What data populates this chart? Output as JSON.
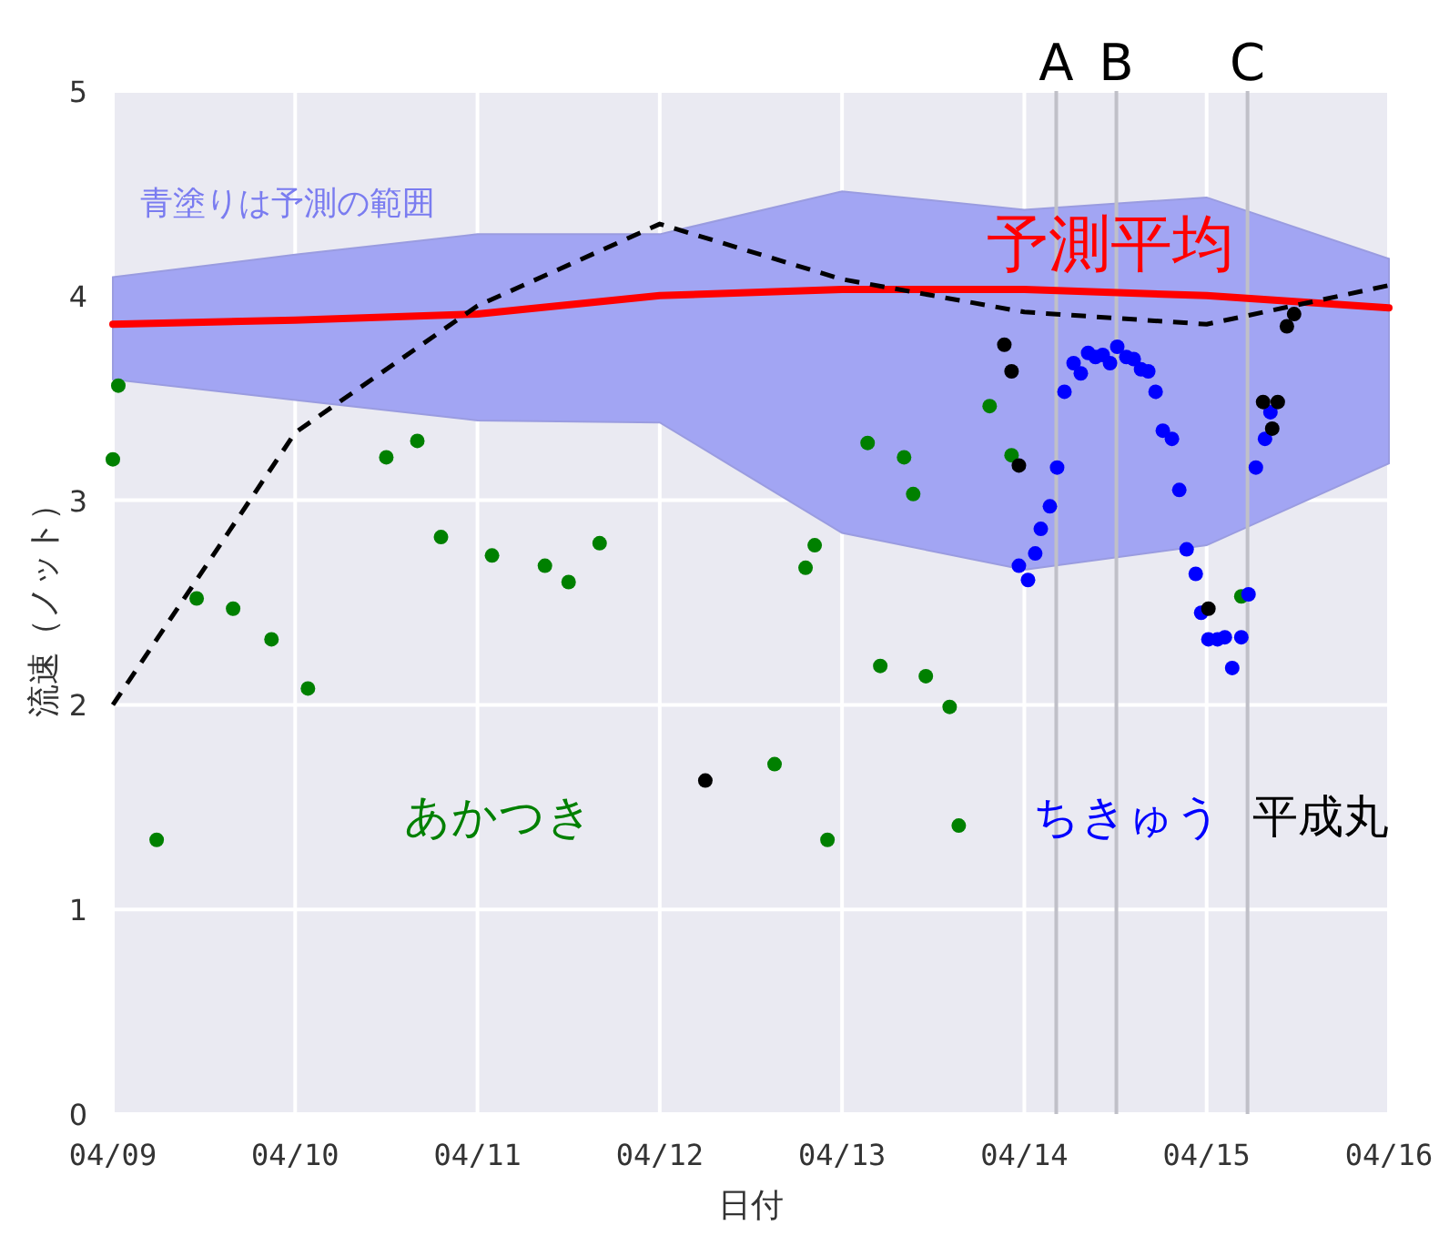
{
  "chart_data": {
    "type": "scatter",
    "xlabel": "日付",
    "ylabel": "流速（ノット）",
    "xlim": [
      "--04-09",
      "--04-16"
    ],
    "ylim": [
      0,
      5
    ],
    "xticks": [
      {
        "value": "--04-09",
        "label": "04/09"
      },
      {
        "value": "--04-10",
        "label": "04/10"
      },
      {
        "value": "--04-11",
        "label": "04/11"
      },
      {
        "value": "--04-12",
        "label": "04/12"
      },
      {
        "value": "--04-13",
        "label": "04/13"
      },
      {
        "value": "--04-14",
        "label": "04/14"
      },
      {
        "value": "--04-15",
        "label": "04/15"
      },
      {
        "value": "--04-16",
        "label": "04/16"
      }
    ],
    "yticks": [
      0,
      1,
      2,
      3,
      4,
      5
    ],
    "grid": true,
    "legend": false,
    "annotations": [
      "青塗りは予測の範囲"
    ],
    "ref_lines": [
      {
        "axis": "x",
        "value": "--04-14T04:12",
        "label": "A",
        "color": "#c0c0c8"
      },
      {
        "axis": "x",
        "value": "--04-14T12:07",
        "label": "B",
        "color": "#c0c0c8"
      },
      {
        "axis": "x",
        "value": "--04-15T05:23",
        "label": "C",
        "color": "#c0c0c8"
      }
    ],
    "series": [
      {
        "name": "予測平均",
        "type": "line",
        "color": "#ff0000",
        "marker": "none",
        "x": [
          "--04-09",
          "--04-10",
          "--04-11",
          "--04-12",
          "--04-13",
          "--04-14",
          "--04-15",
          "--04-16"
        ],
        "values": [
          3.86,
          3.88,
          3.91,
          4.0,
          4.03,
          4.03,
          4.0,
          3.94
        ],
        "lower": [
          3.59,
          3.49,
          3.39,
          3.38,
          2.84,
          2.66,
          2.78,
          3.18
        ],
        "upper": [
          4.09,
          4.2,
          4.3,
          4.3,
          4.51,
          4.42,
          4.48,
          4.18
        ]
      },
      {
        "type": "line",
        "color": "#000000",
        "line_style": "dashed",
        "marker": "none",
        "x": [
          "--04-09",
          "--04-10",
          "--04-11",
          "--04-12",
          "--04-13",
          "--04-14",
          "--04-15",
          "--04-16"
        ],
        "values": [
          2.0,
          3.33,
          3.95,
          4.35,
          4.08,
          3.92,
          3.86,
          4.05
        ]
      },
      {
        "name": "あかつき",
        "color": "#008000",
        "marker": "circle",
        "x": [
          "--04-09T00:43",
          "--04-09T00:00",
          "--04-09T05:46",
          "--04-09T11:02",
          "--04-09T15:50",
          "--04-09T20:53",
          "--04-10T01:41",
          "--04-10T12:00",
          "--04-10T16:05",
          "--04-10T19:12",
          "--04-11T01:55",
          "--04-11T08:53",
          "--04-11T12:00",
          "--04-11T16:05",
          "--04-12T15:07",
          "--04-12T20:24",
          "--04-12T19:12",
          "--04-12T22:05",
          "--04-13T03:22",
          "--04-13T05:02",
          "--04-13T08:10",
          "--04-13T09:22",
          "--04-13T11:02",
          "--04-13T14:10",
          "--04-13T15:22",
          "--04-13T19:26",
          "--04-13T22:19",
          "--04-15T04:34"
        ],
        "values": [
          3.56,
          3.2,
          1.34,
          2.52,
          2.47,
          2.32,
          2.08,
          3.21,
          3.29,
          2.82,
          2.73,
          2.68,
          2.6,
          2.79,
          1.71,
          2.78,
          2.67,
          1.34,
          3.28,
          2.19,
          3.21,
          3.03,
          2.14,
          1.99,
          1.41,
          3.46,
          3.22,
          2.53
        ]
      },
      {
        "name": "ちきゅう",
        "color": "#0000ff",
        "marker": "circle",
        "x": [
          "--04-13T23:17",
          "--04-14T00:29",
          "--04-14T01:26",
          "--04-14T02:10",
          "--04-14T03:22",
          "--04-14T04:19",
          "--04-14T05:17",
          "--04-14T06:29",
          "--04-14T07:26",
          "--04-14T08:24",
          "--04-14T09:22",
          "--04-14T10:19",
          "--04-14T11:17",
          "--04-14T12:14",
          "--04-14T13:26",
          "--04-14T14:24",
          "--04-14T15:22",
          "--04-14T16:19",
          "--04-14T17:17",
          "--04-14T18:14",
          "--04-14T19:26",
          "--04-14T20:24",
          "--04-14T21:22",
          "--04-14T22:34",
          "--04-14T23:17",
          "--04-15T00:14",
          "--04-15T01:26",
          "--04-15T02:24",
          "--04-15T03:22",
          "--04-15T04:34",
          "--04-15T05:31",
          "--04-15T06:29",
          "--04-15T07:41",
          "--04-15T08:24"
        ],
        "values": [
          2.68,
          2.61,
          2.74,
          2.86,
          2.97,
          3.16,
          3.53,
          3.67,
          3.62,
          3.72,
          3.7,
          3.71,
          3.67,
          3.75,
          3.7,
          3.69,
          3.64,
          3.63,
          3.53,
          3.34,
          3.3,
          3.05,
          2.76,
          2.64,
          2.45,
          2.32,
          2.32,
          2.33,
          2.18,
          2.33,
          2.54,
          3.16,
          3.3,
          3.43
        ]
      },
      {
        "name": "平成丸",
        "color": "#000000",
        "marker": "circle",
        "x": [
          "--04-12T06:00",
          "--04-13T21:22",
          "--04-13T22:19",
          "--04-13T23:17",
          "--04-15T00:14",
          "--04-15T07:26",
          "--04-15T09:22",
          "--04-15T08:38",
          "--04-15T10:34",
          "--04-15T11:31"
        ],
        "values": [
          1.63,
          3.76,
          3.63,
          3.17,
          2.47,
          3.48,
          3.48,
          3.35,
          3.85,
          3.91
        ]
      }
    ]
  }
}
